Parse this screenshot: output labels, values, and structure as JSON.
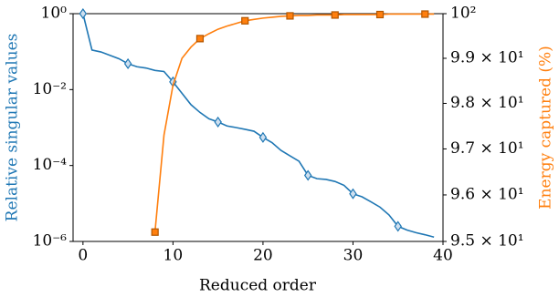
{
  "chart_data": {
    "type": "line",
    "xlabel": "Reduced order",
    "ylabel": "Relative singular values",
    "y2label": "Energy captured (%)",
    "xlim": [
      -1.1,
      40
    ],
    "xticks": [
      0,
      10,
      20,
      30,
      40
    ],
    "ylim": [
      1e-06,
      1
    ],
    "ylog": true,
    "yticks": [
      {
        "value": 1,
        "label": "10⁰"
      },
      {
        "value": 0.01,
        "label": "10⁻²"
      },
      {
        "value": 0.0001,
        "label": "10⁻⁴"
      },
      {
        "value": 1e-06,
        "label": "10⁻⁶"
      }
    ],
    "y2lim": [
      95,
      100
    ],
    "y2log": true,
    "y2ticks": [
      {
        "value": 95,
        "label": "9.5 × 10¹"
      },
      {
        "value": 96,
        "label": "9.6 × 10¹"
      },
      {
        "value": 97,
        "label": "9.7 × 10¹"
      },
      {
        "value": 98,
        "label": "9.8 × 10¹"
      },
      {
        "value": 99,
        "label": "9.9 × 10¹"
      },
      {
        "value": 100,
        "label": "10²"
      }
    ],
    "series": [
      {
        "color": "#1f77b4",
        "marker": "diamond",
        "markevery": 5,
        "x": [
          0,
          1,
          2,
          3,
          4,
          5,
          6,
          7,
          8,
          9,
          10,
          11,
          12,
          13,
          14,
          15,
          16,
          17,
          18,
          19,
          20,
          21,
          22,
          23,
          24,
          25,
          26,
          27,
          28,
          29,
          30,
          31,
          32,
          33,
          34,
          35,
          36,
          37,
          38,
          39
        ],
        "values": [
          1,
          0.11,
          0.098,
          0.08,
          0.065,
          0.048,
          0.04,
          0.037,
          0.032,
          0.03,
          0.016,
          0.008,
          0.004,
          0.0025,
          0.0017,
          0.0014,
          0.0011,
          0.001,
          0.0009,
          0.0008,
          0.00055,
          0.0004,
          0.00025,
          0.00018,
          0.00013,
          5.5e-05,
          4.5e-05,
          4.3e-05,
          3.8e-05,
          3e-05,
          1.8e-05,
          1.5e-05,
          1.1e-05,
          8e-06,
          5e-06,
          2.5e-06,
          2e-06,
          1.7e-06,
          1.5e-06,
          1.3e-06
        ]
      },
      {
        "color": "#ff7f0e",
        "marker": "square",
        "markevery": 5,
        "axis": "y2",
        "x": [
          8,
          9,
          10,
          11,
          12,
          13,
          14,
          15,
          16,
          17,
          18,
          19,
          20,
          21,
          22,
          23,
          24,
          25,
          26,
          27,
          28,
          29,
          30,
          31,
          32,
          33,
          34,
          35,
          36,
          37,
          38,
          39
        ],
        "values": [
          95.2,
          97.3,
          98.4,
          99.0,
          99.25,
          99.44,
          99.55,
          99.65,
          99.72,
          99.78,
          99.84,
          99.87,
          99.9,
          99.92,
          99.94,
          99.95,
          99.96,
          99.96,
          99.97,
          99.97,
          99.97,
          99.98,
          99.98,
          99.98,
          99.98,
          99.98,
          99.99,
          99.99,
          99.99,
          99.99,
          99.99,
          99.99
        ]
      }
    ]
  }
}
